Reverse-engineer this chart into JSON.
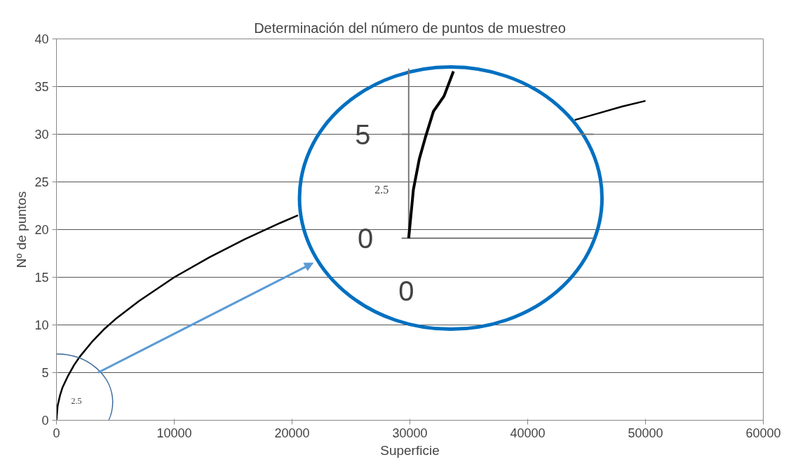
{
  "chart_data": {
    "type": "line",
    "title": "Determinación del número de puntos de muestreo",
    "xlabel": "Superficie",
    "ylabel": "Nº de puntos",
    "x": [
      0,
      100,
      300,
      500,
      1000,
      1500,
      2000,
      3000,
      4000,
      5000,
      7000,
      10000,
      13000,
      16000,
      19000,
      20500,
      30000,
      44000,
      46000,
      48000,
      50000
    ],
    "series": [
      {
        "color": "#000000",
        "values": [
          0,
          1.5,
          2.6,
          3.4,
          4.7,
          5.8,
          6.7,
          8.2,
          9.5,
          10.6,
          12.5,
          15,
          17.1,
          19,
          20.7,
          21.5,
          null,
          31.5,
          32.2,
          32.9,
          33.5
        ]
      }
    ],
    "xlim": [
      0,
      60000
    ],
    "xticks": [
      0,
      10000,
      20000,
      30000,
      40000,
      50000,
      60000
    ],
    "ylim": [
      0,
      40
    ],
    "yticks": [
      0,
      5,
      10,
      15,
      20,
      25,
      30,
      35,
      40
    ],
    "grid": "y",
    "marker": "none",
    "line_style": "solid",
    "annotations": [
      "2.5",
      "5",
      "2.5",
      "0",
      "0"
    ]
  }
}
